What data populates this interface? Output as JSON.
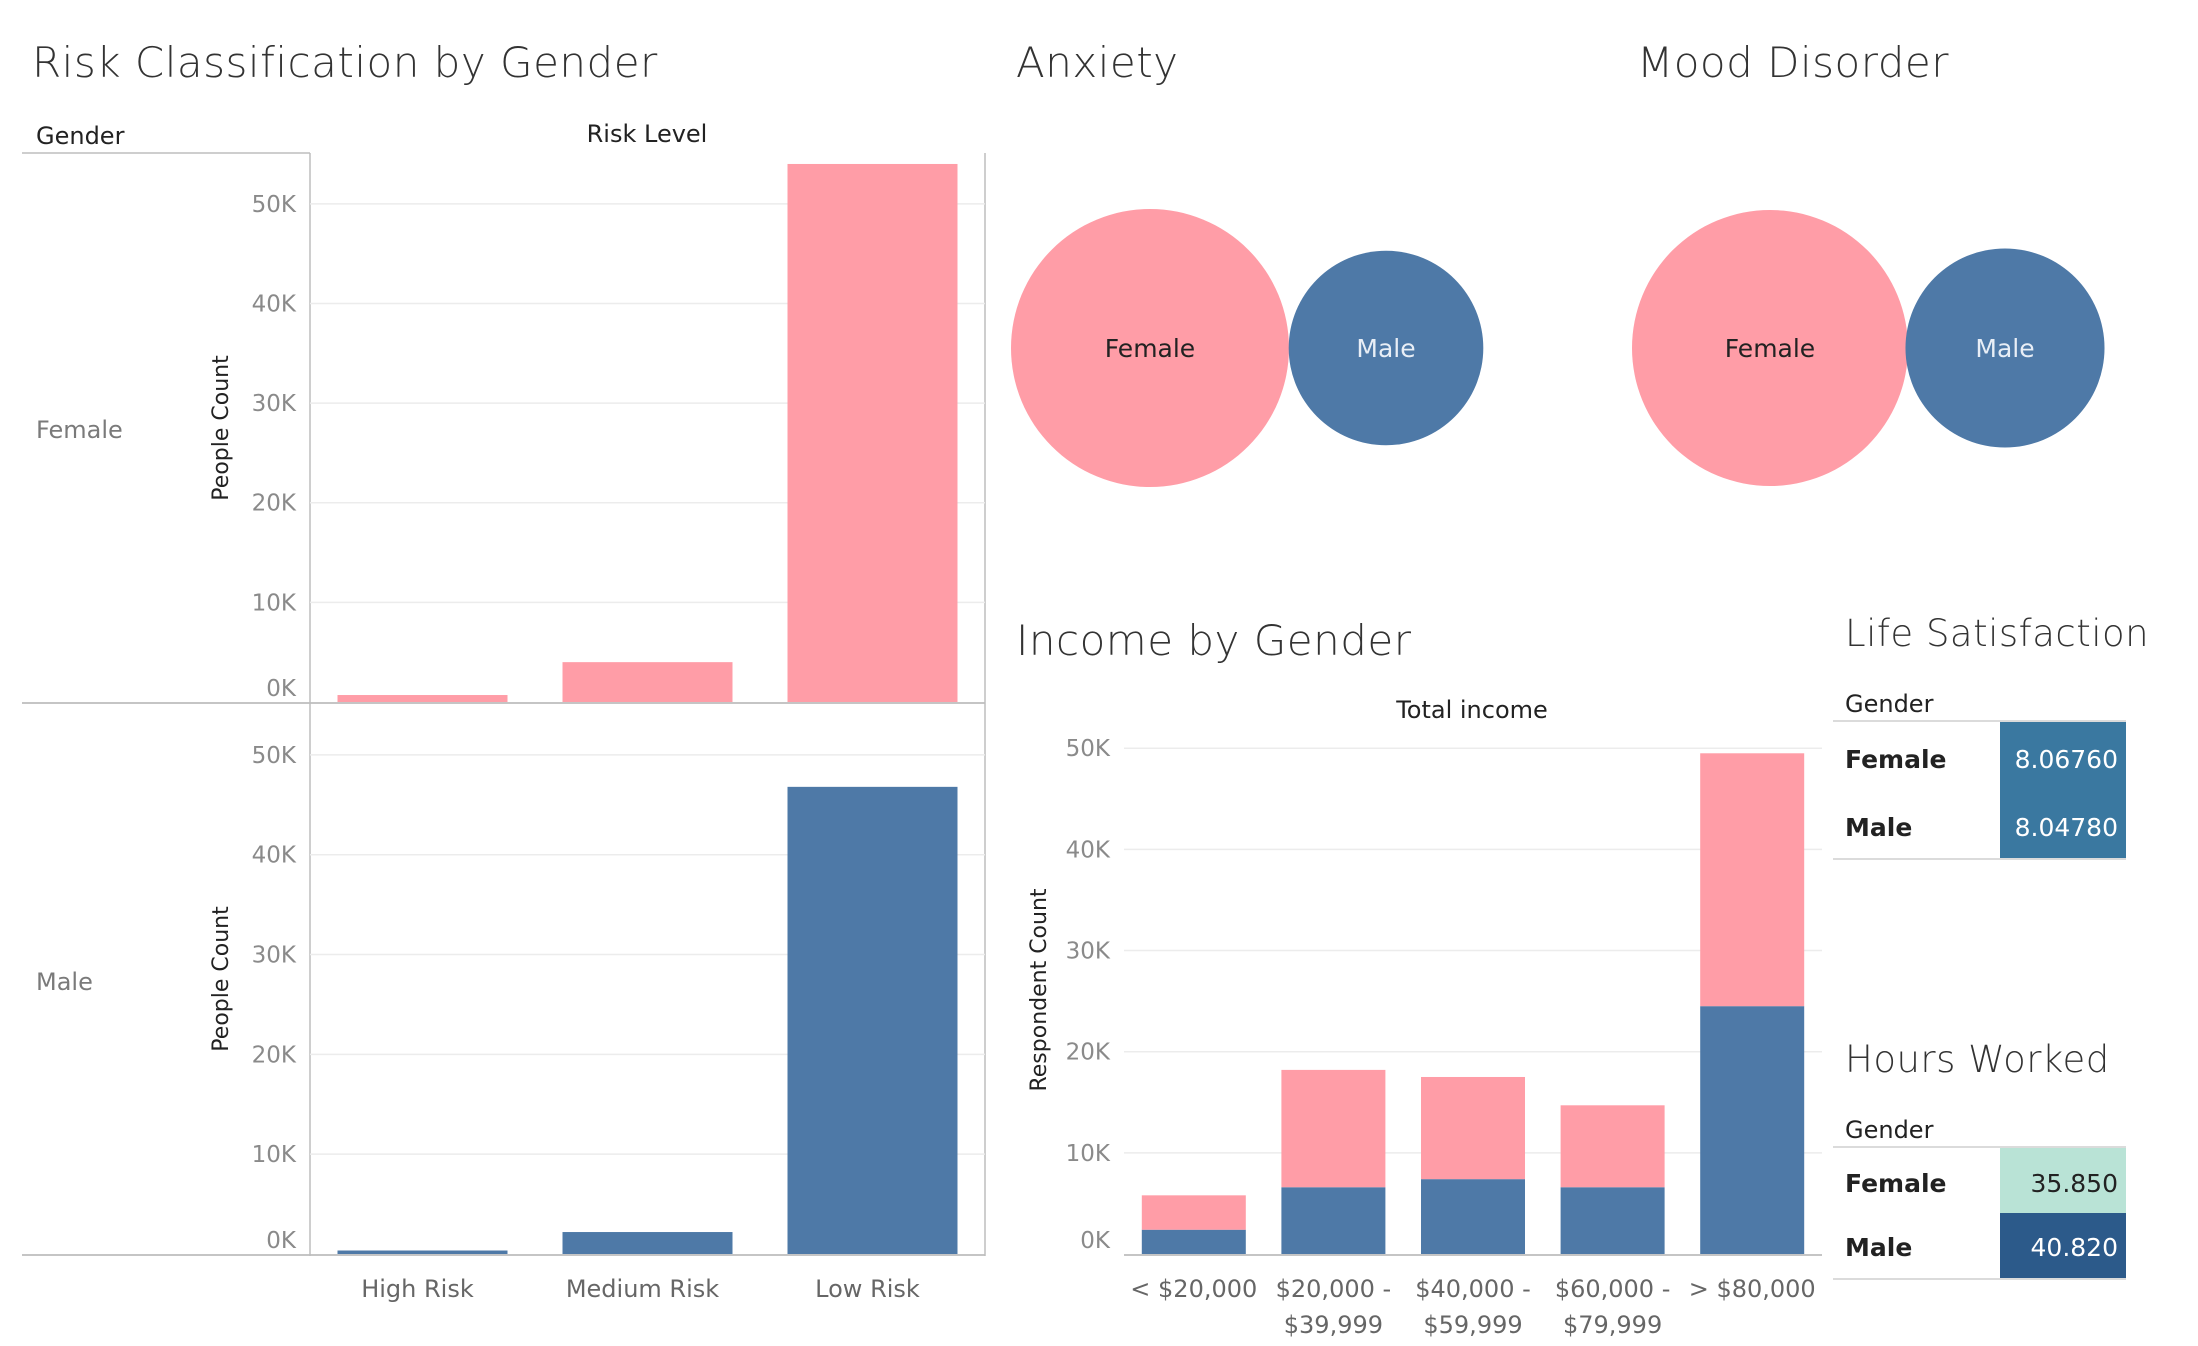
{
  "colors": {
    "female": "#FF9DA7",
    "male": "#4E79A7",
    "text": "#333333",
    "axis_text": "#8A8A8A",
    "grid": "#ECECEC",
    "axis_line": "#BDBDBD"
  },
  "risk": {
    "title": "Risk Classification by Gender",
    "row_header": "Gender",
    "col_header": "Risk Level",
    "ylabel": "People Count"
  },
  "anxiety": {
    "title": "Anxiety"
  },
  "mood": {
    "title": "Mood Disorder"
  },
  "income": {
    "title": "Income by Gender",
    "col_header": "Total income",
    "ylabel": "Respondent Count"
  },
  "life": {
    "title": "Life Satisfaction",
    "header": "Gender",
    "rows": [
      {
        "label": "Female",
        "value": "8.06760",
        "color": "#3A78A0"
      },
      {
        "label": "Male",
        "value": "8.04780",
        "color": "#3A78A0"
      }
    ]
  },
  "hours": {
    "title": "Hours Worked",
    "header": "Gender",
    "rows": [
      {
        "label": "Female",
        "value": "35.850",
        "color": "#B9E3D6"
      },
      {
        "label": "Male",
        "value": "40.820",
        "color": "#2C5A8A"
      }
    ]
  },
  "chart_data": [
    {
      "id": "risk",
      "type": "bar",
      "title": "Risk Classification by Gender",
      "xlabel": "Risk Level",
      "ylabel": "People Count",
      "categories": [
        "High Risk",
        "Medium Risk",
        "Low Risk"
      ],
      "rows": [
        {
          "name": "Female",
          "values": [
            700,
            4000,
            54000
          ]
        },
        {
          "name": "Male",
          "values": [
            350,
            2200,
            46800
          ]
        }
      ],
      "ylim": [
        0,
        55000
      ],
      "yticks": [
        "0K",
        "10K",
        "20K",
        "30K",
        "40K",
        "50K"
      ]
    },
    {
      "id": "anxiety",
      "type": "bubble",
      "title": "Anxiety",
      "items": [
        {
          "name": "Female",
          "size": 1.0
        },
        {
          "name": "Male",
          "size": 0.49
        }
      ]
    },
    {
      "id": "mood",
      "type": "bubble",
      "title": "Mood Disorder",
      "items": [
        {
          "name": "Female",
          "size": 1.0
        },
        {
          "name": "Male",
          "size": 0.52
        }
      ]
    },
    {
      "id": "income",
      "type": "bar",
      "stacked": true,
      "title": "Income by Gender",
      "xlabel": "Total income",
      "ylabel": "Respondent Count",
      "categories": [
        [
          "< $20,000"
        ],
        [
          "$20,000 -",
          "$39,999"
        ],
        [
          "$40,000 -",
          "$59,999"
        ],
        [
          "$60,000 -",
          "$79,999"
        ],
        [
          "> $80,000"
        ]
      ],
      "series": [
        {
          "name": "Male",
          "values": [
            2400,
            6600,
            7400,
            6600,
            24500
          ]
        },
        {
          "name": "Female",
          "values": [
            3400,
            11600,
            10100,
            8100,
            25000
          ]
        }
      ],
      "ylim": [
        0,
        52000
      ],
      "yticks": [
        "0K",
        "10K",
        "20K",
        "30K",
        "40K",
        "50K"
      ]
    }
  ]
}
